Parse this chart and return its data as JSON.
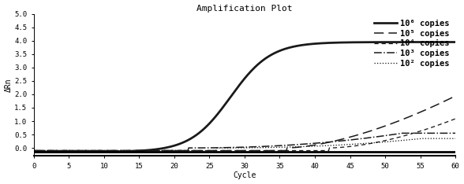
{
  "title": "Amplification Plot",
  "xlabel": "Cycle",
  "ylabel": "ΔRn",
  "xlim": [
    0,
    60
  ],
  "ylim": [
    -0.3,
    5.0
  ],
  "ytick_labels": [
    "0.0",
    "0.5",
    "1.0",
    "1.5",
    "2.0",
    "2.5",
    "3.0",
    "3.5",
    "4.0",
    "4.5",
    "5.0"
  ],
  "ytick_vals": [
    0.0,
    0.5,
    1.0,
    1.5,
    2.0,
    2.5,
    3.0,
    3.5,
    4.0,
    4.5,
    5.0
  ],
  "xtick_vals": [
    0,
    5,
    10,
    15,
    20,
    25,
    30,
    35,
    40,
    45,
    50,
    55,
    60
  ],
  "legend_labels": [
    "10⁶ copies",
    "10⁵ copies",
    "10⁴ copies",
    "10³ copies",
    "10² copies"
  ],
  "background_color": "#ffffff",
  "line_color": "#1a1a1a",
  "title_fontsize": 8,
  "label_fontsize": 7,
  "tick_fontsize": 6.5,
  "legend_fontsize": 7.5
}
